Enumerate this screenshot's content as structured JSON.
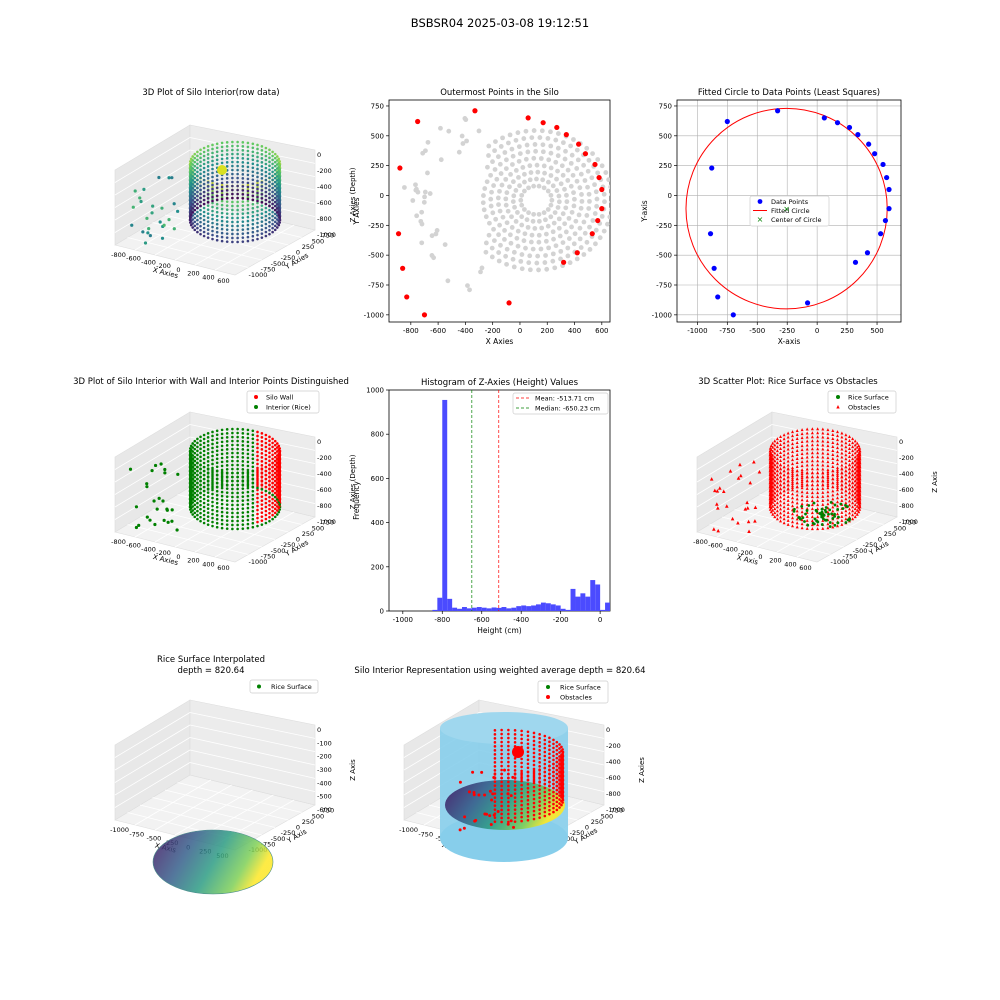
{
  "figure": {
    "title": "BSBSR04 2025-03-08 19:12:51"
  },
  "colors": {
    "gray": "#d3d3d3",
    "red": "#ff0000",
    "blue": "#0000ff",
    "green": "#008000",
    "hist": "#4b4bff",
    "sky": "#87ceeb",
    "pane": "#f2f2f2"
  },
  "chart_data": [
    {
      "id": "p1",
      "type": "scatter3d",
      "title": "3D Plot of Silo Interior(row data)",
      "xlabel": "X Axies",
      "ylabel": "Y Axies",
      "zlabel": "Z Axies (Depth)",
      "xticks": [
        "-800",
        "-600",
        "-400",
        "-200",
        "0",
        "200",
        "400",
        "600"
      ],
      "yticks": [
        "750",
        "500",
        "250",
        "0",
        "-250",
        "-500",
        "-750",
        "-1000"
      ],
      "zticks": [
        "0",
        "-200",
        "-400",
        "-600",
        "-800",
        "-1000"
      ],
      "colormap": "viridis"
    },
    {
      "id": "p2",
      "type": "scatter",
      "title": "Outermost Points in the Silo",
      "xlabel": "X Axies",
      "ylabel": "Y Axies",
      "xlim": [
        -960,
        660
      ],
      "ylim": [
        -1060,
        800
      ],
      "xticks": [
        -800,
        -600,
        -400,
        -200,
        0,
        200,
        400,
        600
      ],
      "yticks": [
        -1000,
        -750,
        -500,
        -250,
        0,
        250,
        500,
        750
      ],
      "outermost_points": [
        [
          -330,
          710
        ],
        [
          -750,
          620
        ],
        [
          60,
          650
        ],
        [
          170,
          610
        ],
        [
          270,
          570
        ],
        [
          340,
          510
        ],
        [
          430,
          430
        ],
        [
          480,
          350
        ],
        [
          550,
          260
        ],
        [
          580,
          150
        ],
        [
          600,
          50
        ],
        [
          -880,
          230
        ],
        [
          600,
          -110
        ],
        [
          570,
          -210
        ],
        [
          530,
          -320
        ],
        [
          420,
          -480
        ],
        [
          320,
          -560
        ],
        [
          -890,
          -320
        ],
        [
          -860,
          -610
        ],
        [
          -830,
          -850
        ],
        [
          -700,
          -1000
        ],
        [
          -80,
          -900
        ]
      ]
    },
    {
      "id": "p3",
      "type": "scatter",
      "title": "Fitted Circle to Data Points (Least Squares)",
      "xlabel": "X-axis",
      "ylabel": "Y-axis",
      "xlim": [
        -1170,
        700
      ],
      "ylim": [
        -1060,
        800
      ],
      "xticks": [
        -1000,
        -750,
        -500,
        -250,
        0,
        250,
        500
      ],
      "yticks": [
        -1000,
        -750,
        -500,
        -250,
        0,
        250,
        500,
        750
      ],
      "grid": true,
      "data_points": [
        [
          -330,
          710
        ],
        [
          -750,
          620
        ],
        [
          60,
          650
        ],
        [
          170,
          610
        ],
        [
          270,
          570
        ],
        [
          340,
          510
        ],
        [
          430,
          430
        ],
        [
          480,
          350
        ],
        [
          550,
          260
        ],
        [
          580,
          150
        ],
        [
          600,
          50
        ],
        [
          -880,
          230
        ],
        [
          600,
          -110
        ],
        [
          570,
          -210
        ],
        [
          530,
          -320
        ],
        [
          420,
          -480
        ],
        [
          320,
          -560
        ],
        [
          -890,
          -320
        ],
        [
          -860,
          -610
        ],
        [
          -830,
          -850
        ],
        [
          -700,
          -1000
        ],
        [
          -80,
          -900
        ]
      ],
      "circle": {
        "cx": -255,
        "cy": -110,
        "r": 840
      },
      "legend": [
        "Data Points",
        "Fitted Circle",
        "Center of Circle"
      ],
      "legend_loc": "center"
    },
    {
      "id": "p4",
      "type": "scatter3d",
      "title": "3D Plot of Silo Interior with Wall and Interior Points Distinguished",
      "xlabel": "X Axies",
      "ylabel": "Y Axies",
      "zlabel": "Z Axies (Depth)",
      "xticks": [
        "-800",
        "-600",
        "-400",
        "-200",
        "0",
        "200",
        "400",
        "600"
      ],
      "yticks": [
        "750",
        "500",
        "250",
        "0",
        "-250",
        "-500",
        "-750",
        "-1000"
      ],
      "zticks": [
        "0",
        "-200",
        "-400",
        "-600",
        "-800",
        "-1000"
      ],
      "legend": [
        "Silo Wall",
        "Interior (Rice)"
      ],
      "legend_loc": "upper right"
    },
    {
      "id": "p5",
      "type": "histogram",
      "title": "Histogram of Z-Axies (Height) Values",
      "xlabel": "Height (cm)",
      "ylabel": "Frequency",
      "xlim": [
        -1070,
        50
      ],
      "ylim": [
        0,
        1000
      ],
      "xticks": [
        -1000,
        -800,
        -600,
        -400,
        -200,
        0
      ],
      "yticks": [
        0,
        200,
        400,
        600,
        800,
        1000
      ],
      "bin_edges": [
        -850,
        -825,
        -800,
        -775,
        -750,
        -725,
        -700,
        -675,
        -650,
        -625,
        -600,
        -575,
        -550,
        -525,
        -500,
        -475,
        -450,
        -425,
        -400,
        -375,
        -350,
        -325,
        -300,
        -275,
        -250,
        -225,
        -200,
        -175,
        -150,
        -125,
        -100,
        -75,
        -50,
        -25,
        0,
        25
      ],
      "counts": [
        5,
        60,
        955,
        55,
        15,
        10,
        18,
        12,
        15,
        18,
        15,
        12,
        16,
        14,
        18,
        12,
        15,
        22,
        25,
        22,
        25,
        30,
        38,
        35,
        30,
        25,
        10,
        5,
        100,
        65,
        80,
        65,
        140,
        120,
        5,
        38
      ],
      "mean": -513.71,
      "median": -650.23,
      "legend": [
        "Mean: -513.71 cm",
        "Median: -650.23 cm"
      ],
      "legend_loc": "upper right"
    },
    {
      "id": "p6",
      "type": "scatter3d",
      "title": "3D Scatter Plot: Rice Surface vs Obstacles",
      "xlabel": "X Axis",
      "ylabel": "Y Axis",
      "zlabel": "Z Axis",
      "xticks": [
        "-800",
        "-600",
        "-400",
        "-200",
        "0",
        "200",
        "400",
        "600"
      ],
      "yticks": [
        "750",
        "500",
        "250",
        "0",
        "-250",
        "-500",
        "-750",
        "-1000"
      ],
      "zticks": [
        "0",
        "-200",
        "-400",
        "-600",
        "-800",
        "-1000"
      ],
      "legend": [
        "Rice Surface",
        "Obstacles"
      ],
      "legend_loc": "upper right"
    },
    {
      "id": "p7",
      "type": "surface3d",
      "title": "Rice Surface Interpolated",
      "subtitle": "depth = 820.64",
      "xlabel": "X Axis",
      "ylabel": "Y Axis",
      "zlabel": "Z Axis",
      "xticks": [
        "-1000",
        "-750",
        "-500",
        "-250",
        "0",
        "250",
        "500"
      ],
      "yticks": [
        "750",
        "500",
        "250",
        "0",
        "-250",
        "-500",
        "-750",
        "-1000"
      ],
      "zticks": [
        "0",
        "-100",
        "-200",
        "-300",
        "-400",
        "-500",
        "-600"
      ],
      "legend": [
        "Rice Surface"
      ],
      "legend_loc": "upper right"
    },
    {
      "id": "p8",
      "type": "surface3d",
      "title": "Silo Interior Representation using weighted average depth = 820.64",
      "xlabel": "X Axies",
      "ylabel": "Y Axies",
      "zlabel": "Z Axies",
      "xticks": [
        "-1000",
        "-750",
        "-500",
        "-250",
        "0",
        "250",
        "500"
      ],
      "yticks": [
        "750",
        "500",
        "250",
        "0",
        "-250",
        "-500",
        "-750",
        "-1000"
      ],
      "zticks": [
        "0",
        "-200",
        "-400",
        "-600",
        "-800",
        "-1000"
      ],
      "legend": [
        "Rice Surface",
        "Obstacles"
      ],
      "legend_loc": "upper right"
    }
  ]
}
